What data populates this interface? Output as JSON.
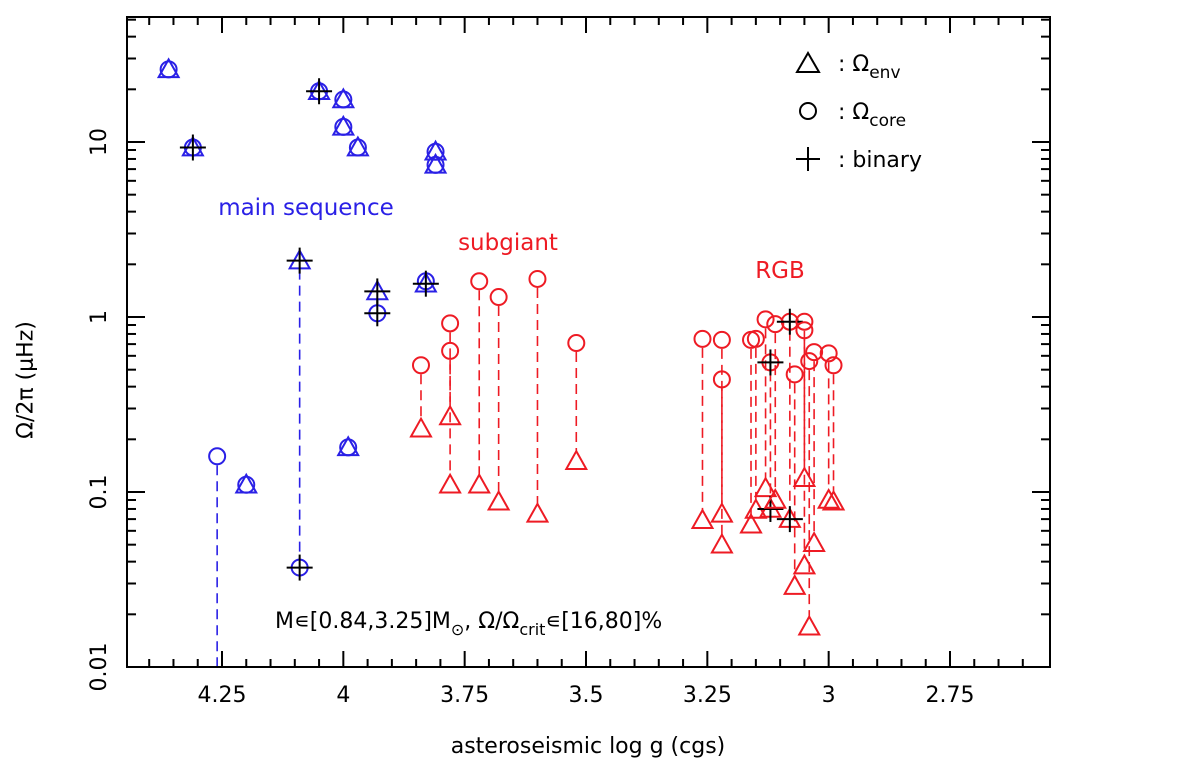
{
  "chart_data": {
    "type": "scatter",
    "title": "",
    "xlabel": "asteroseismic log g (cgs)",
    "ylabel": "Ω/2π (μHz)",
    "x_reversed": true,
    "xlim": [
      4.48,
      2.56
    ],
    "ylim": [
      0.01,
      50
    ],
    "yscale": "log",
    "x_ticks": [
      4.25,
      4,
      3.75,
      3.5,
      3.25,
      3,
      2.75
    ],
    "x_tick_labels": [
      "4.25",
      "4",
      "3.75",
      "3.5",
      "3.25",
      "3",
      "2.75"
    ],
    "y_ticks": [
      0.01,
      0.1,
      1,
      10
    ],
    "y_tick_labels": [
      "0.01",
      "0.1",
      "1",
      "10"
    ],
    "legend": {
      "placement": "top-right",
      "entries": [
        {
          "symbol": "triangle",
          "name": "Ω",
          "sub": "env"
        },
        {
          "symbol": "circle",
          "name": "Ω",
          "sub": "core"
        },
        {
          "symbol": "plus",
          "name": "binary",
          "sub": ""
        }
      ]
    },
    "annotations": [
      {
        "text": "main sequence",
        "color": "#2a20e6"
      },
      {
        "text": "subgiant",
        "color": "#ee1b24"
      },
      {
        "text": "RGB",
        "color": "#ee1b24"
      }
    ],
    "note": {
      "parts": [
        "M∊[0.84,3.25]M",
        "⊙",
        ", Ω/Ω",
        "crit",
        "∊[16,80]%"
      ]
    },
    "colors": {
      "main_sequence": "#2a20e6",
      "subgiant": "#ee1b24",
      "rgb": "#ee1b24",
      "binary": "#000000",
      "axes": "#000000"
    },
    "series": [
      {
        "group": "main_sequence",
        "points": [
          {
            "logg": 4.36,
            "env": 26,
            "core": 26,
            "binary": false
          },
          {
            "logg": 4.31,
            "env": 9.3,
            "core": 9.3,
            "binary": true
          },
          {
            "logg": 4.05,
            "env": 19.5,
            "core": 19.5,
            "binary": true
          },
          {
            "logg": 4.0,
            "env": 17.5,
            "core": 17.5,
            "binary": false
          },
          {
            "logg": 4.0,
            "env": 12.2,
            "core": 12.2,
            "binary": false
          },
          {
            "logg": 3.97,
            "env": 9.3,
            "core": 9.3,
            "binary": false
          },
          {
            "logg": 3.81,
            "env": 8.8,
            "core": 8.8,
            "binary": false
          },
          {
            "logg": 3.81,
            "env": 7.4,
            "core": 7.4,
            "binary": false
          },
          {
            "logg": 4.09,
            "env": 2.1,
            "core": 0.037,
            "binary": true
          },
          {
            "logg": 3.93,
            "env": 1.4,
            "core": 1.05,
            "binary": true
          },
          {
            "logg": 3.83,
            "env": 1.55,
            "core": 1.6,
            "binary": true
          },
          {
            "logg": 4.26,
            "env": null,
            "core": 0.16,
            "binary": false
          },
          {
            "logg": 4.2,
            "env": 0.11,
            "core": 0.11,
            "binary": false
          },
          {
            "logg": 3.99,
            "env": 0.18,
            "core": 0.18,
            "binary": false
          }
        ]
      },
      {
        "group": "subgiant",
        "points": [
          {
            "logg": 3.84,
            "env": 0.23,
            "core": 0.53,
            "binary": false
          },
          {
            "logg": 3.78,
            "env": 0.27,
            "core": 0.64,
            "binary": false
          },
          {
            "logg": 3.78,
            "env": 0.11,
            "core": 0.92,
            "binary": false
          },
          {
            "logg": 3.72,
            "env": 0.11,
            "core": 1.6,
            "binary": false
          },
          {
            "logg": 3.68,
            "env": 0.088,
            "core": 1.3,
            "binary": false
          },
          {
            "logg": 3.6,
            "env": 0.075,
            "core": 1.65,
            "binary": false
          },
          {
            "logg": 3.52,
            "env": 0.15,
            "core": 0.71,
            "binary": false
          }
        ]
      },
      {
        "group": "rgb",
        "points": [
          {
            "logg": 3.26,
            "env": 0.069,
            "core": 0.75,
            "binary": false
          },
          {
            "logg": 3.22,
            "env": 0.075,
            "core": 0.44,
            "binary": false
          },
          {
            "logg": 3.22,
            "env": 0.05,
            "core": 0.74,
            "binary": false
          },
          {
            "logg": 3.16,
            "env": 0.065,
            "core": 0.74,
            "binary": false
          },
          {
            "logg": 3.15,
            "env": 0.079,
            "core": 0.75,
            "binary": false
          },
          {
            "logg": 3.13,
            "env": 0.105,
            "core": 0.97,
            "binary": false
          },
          {
            "logg": 3.12,
            "env": 0.08,
            "core": 0.55,
            "binary": true
          },
          {
            "logg": 3.11,
            "env": 0.09,
            "core": 0.91,
            "binary": false
          },
          {
            "logg": 3.08,
            "env": 0.07,
            "core": 0.94,
            "binary": true
          },
          {
            "logg": 3.07,
            "env": 0.029,
            "core": 0.47,
            "binary": false
          },
          {
            "logg": 3.05,
            "env": 0.038,
            "core": 0.94,
            "binary": false
          },
          {
            "logg": 3.05,
            "env": 0.12,
            "core": 0.84,
            "binary": false
          },
          {
            "logg": 3.04,
            "env": 0.017,
            "core": 0.56,
            "binary": false
          },
          {
            "logg": 3.03,
            "env": 0.051,
            "core": 0.63,
            "binary": false
          },
          {
            "logg": 3.0,
            "env": 0.09,
            "core": 0.62,
            "binary": false
          },
          {
            "logg": 2.99,
            "env": 0.088,
            "core": 0.53,
            "binary": false
          }
        ]
      }
    ]
  }
}
